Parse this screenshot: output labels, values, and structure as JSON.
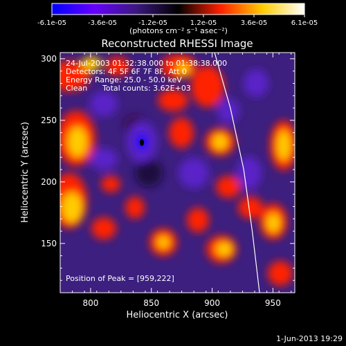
{
  "chart_data": {
    "type": "heatmap",
    "title": "Reconstructed RHESSI Image",
    "xlabel": "Heliocentric X (arcsec)",
    "ylabel": "Heliocentric Y (arcsec)",
    "xlim": [
      775,
      968
    ],
    "ylim": [
      110,
      305
    ],
    "x_ticks": [
      800,
      850,
      900,
      950
    ],
    "y_ticks": [
      150,
      200,
      250,
      300
    ],
    "colorbar": {
      "range": [
        -6.1e-05,
        6.1e-05
      ],
      "tick_labels": [
        "-6.1e-05",
        "-3.6e-05",
        "-1.2e-05",
        "1.2e-05",
        "3.6e-05",
        "6.1e-05"
      ],
      "unit_label": "(photons cm⁻² s⁻¹ asec⁻²)",
      "colormap": [
        "#0000ff",
        "#6600ff",
        "#3c1880",
        "#000000",
        "#ff2000",
        "#ffcc00",
        "#ffffff"
      ]
    },
    "annotations": {
      "time": "24-Jul-2003 01:32:38.000 to 01:38:38.000",
      "detectors": "Detectors: 4F 5F 6F 7F 8F, Att 0",
      "energy": "Energy Range: 25.0 - 50.0 keV",
      "method": "Clean",
      "counts": "Total counts: 3.62E+03",
      "peak": "Position of Peak = [959,222]"
    },
    "peak": [
      959,
      222
    ],
    "limb_curve": [
      [
        902,
        305
      ],
      [
        915,
        260
      ],
      [
        926,
        210
      ],
      [
        933,
        160
      ],
      [
        939,
        110
      ]
    ],
    "footer_date": "1-Jun-2013 19:29"
  }
}
